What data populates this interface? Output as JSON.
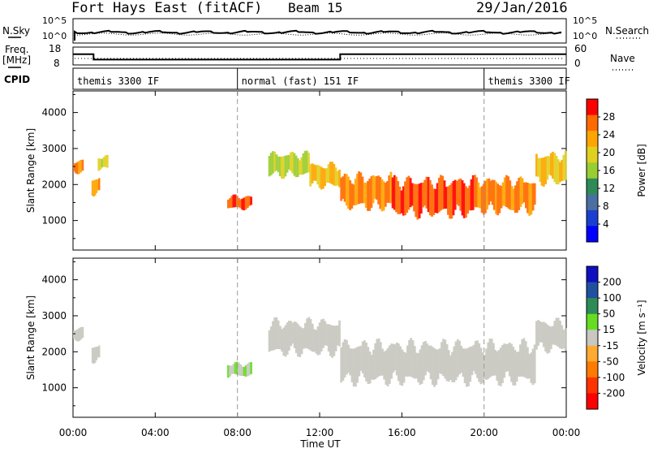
{
  "header": {
    "station": "Fort Hays East (fitACF)",
    "beam": "Beam 15",
    "date": "29/Jan/2016"
  },
  "small_panels": {
    "nsky_label": "N.Sky",
    "nsearch_label": "N.Search",
    "freq_label_1": "Freq.",
    "freq_label_2": "[MHz]",
    "nave_label": "Nave",
    "cpid_label": "CPID",
    "nsky_ticks": [
      "10^5",
      "10^0"
    ],
    "nsearch_ticks": [
      "10^5",
      "10^0"
    ],
    "freq_ticks": [
      "18",
      "8"
    ],
    "nave_ticks": [
      "60",
      "0"
    ]
  },
  "cpid_segments": [
    {
      "label": "themis 3300 IF",
      "start_hr": 0,
      "end_hr": 8
    },
    {
      "label": "normal (fast) 151 IF",
      "start_hr": 8,
      "end_hr": 20
    },
    {
      "label": "themis 3300 IF",
      "start_hr": 20,
      "end_hr": 24
    }
  ],
  "freq_steps": [
    {
      "start_hr": 0,
      "end_hr": 1.0,
      "value": 14
    },
    {
      "start_hr": 1.0,
      "end_hr": 13.0,
      "value": 11
    },
    {
      "start_hr": 13.0,
      "end_hr": 24,
      "value": 14
    }
  ],
  "axes": {
    "xlabel": "Time UT",
    "x_ticks": [
      "00:00",
      "04:00",
      "08:00",
      "12:00",
      "16:00",
      "20:00",
      "00:00"
    ],
    "ylabel": "Slant Range [km]",
    "y_ticks": [
      "4000",
      "3000",
      "2000",
      "1000"
    ]
  },
  "colorbars": {
    "power": {
      "label": "Power [dB]",
      "ticks": [
        "28",
        "24",
        "20",
        "16",
        "12",
        "8",
        "4"
      ],
      "colors": [
        "#ff0000",
        "#ff6a00",
        "#ffa500",
        "#e0d020",
        "#9acd32",
        "#2e8b57",
        "#4a6fa0",
        "#1a3fd0",
        "#0000ff"
      ]
    },
    "velocity": {
      "label": "Velocity [m s⁻¹]",
      "ticks": [
        "200",
        "100",
        "50",
        "15",
        "-15",
        "-50",
        "-100",
        "-200"
      ],
      "colors": [
        "#1010c0",
        "#2050a0",
        "#2e8b57",
        "#66dd22",
        "#c8c8c0",
        "#ffaa30",
        "#ff7a00",
        "#ff3300",
        "#ff0000"
      ]
    }
  },
  "chart_data": [
    {
      "type": "heatmap",
      "title": "Power",
      "xlabel": "Time UT",
      "ylabel": "Slant Range [km]",
      "xlim": [
        0,
        24
      ],
      "ylim": [
        180,
        4600
      ],
      "zlabel": "Power [dB]",
      "zlim": [
        0,
        30
      ],
      "regions": [
        {
          "t0": 0.0,
          "t1": 0.5,
          "r0": 2300,
          "r1": 2700,
          "value": 24
        },
        {
          "t0": 0.9,
          "t1": 1.3,
          "r0": 1700,
          "r1": 2200,
          "value": 22
        },
        {
          "t0": 1.2,
          "t1": 1.7,
          "r0": 2400,
          "r1": 2800,
          "value": 18
        },
        {
          "t0": 7.5,
          "t1": 8.7,
          "r0": 1300,
          "r1": 1700,
          "value": 26
        },
        {
          "t0": 9.5,
          "t1": 11.5,
          "r0": 2200,
          "r1": 2900,
          "value": 16
        },
        {
          "t0": 11.5,
          "t1": 13.0,
          "r0": 1900,
          "r1": 2600,
          "value": 20
        },
        {
          "t0": 13.0,
          "t1": 15.5,
          "r0": 1300,
          "r1": 2300,
          "value": 24
        },
        {
          "t0": 15.5,
          "t1": 19.5,
          "r0": 1100,
          "r1": 2200,
          "value": 26
        },
        {
          "t0": 19.5,
          "t1": 22.5,
          "r0": 1200,
          "r1": 2200,
          "value": 24
        },
        {
          "t0": 22.5,
          "t1": 24.0,
          "r0": 2000,
          "r1": 2900,
          "value": 20
        }
      ]
    },
    {
      "type": "heatmap",
      "title": "Velocity",
      "xlabel": "Time UT",
      "ylabel": "Slant Range [km]",
      "xlim": [
        0,
        24
      ],
      "ylim": [
        180,
        4600
      ],
      "zlabel": "Velocity [m s⁻¹]",
      "zlim": [
        -200,
        200
      ],
      "regions": [
        {
          "t0": 0.0,
          "t1": 0.5,
          "r0": 2300,
          "r1": 2700,
          "value": 0
        },
        {
          "t0": 0.9,
          "t1": 1.3,
          "r0": 1700,
          "r1": 2200,
          "value": 0
        },
        {
          "t0": 7.5,
          "t1": 8.7,
          "r0": 1300,
          "r1": 1700,
          "value": 25
        },
        {
          "t0": 9.5,
          "t1": 13.0,
          "r0": 1900,
          "r1": 2900,
          "value": 0
        },
        {
          "t0": 13.0,
          "t1": 22.5,
          "r0": 1100,
          "r1": 2300,
          "value": 0
        },
        {
          "t0": 22.5,
          "t1": 24.0,
          "r0": 2000,
          "r1": 2900,
          "value": 0
        }
      ]
    }
  ]
}
